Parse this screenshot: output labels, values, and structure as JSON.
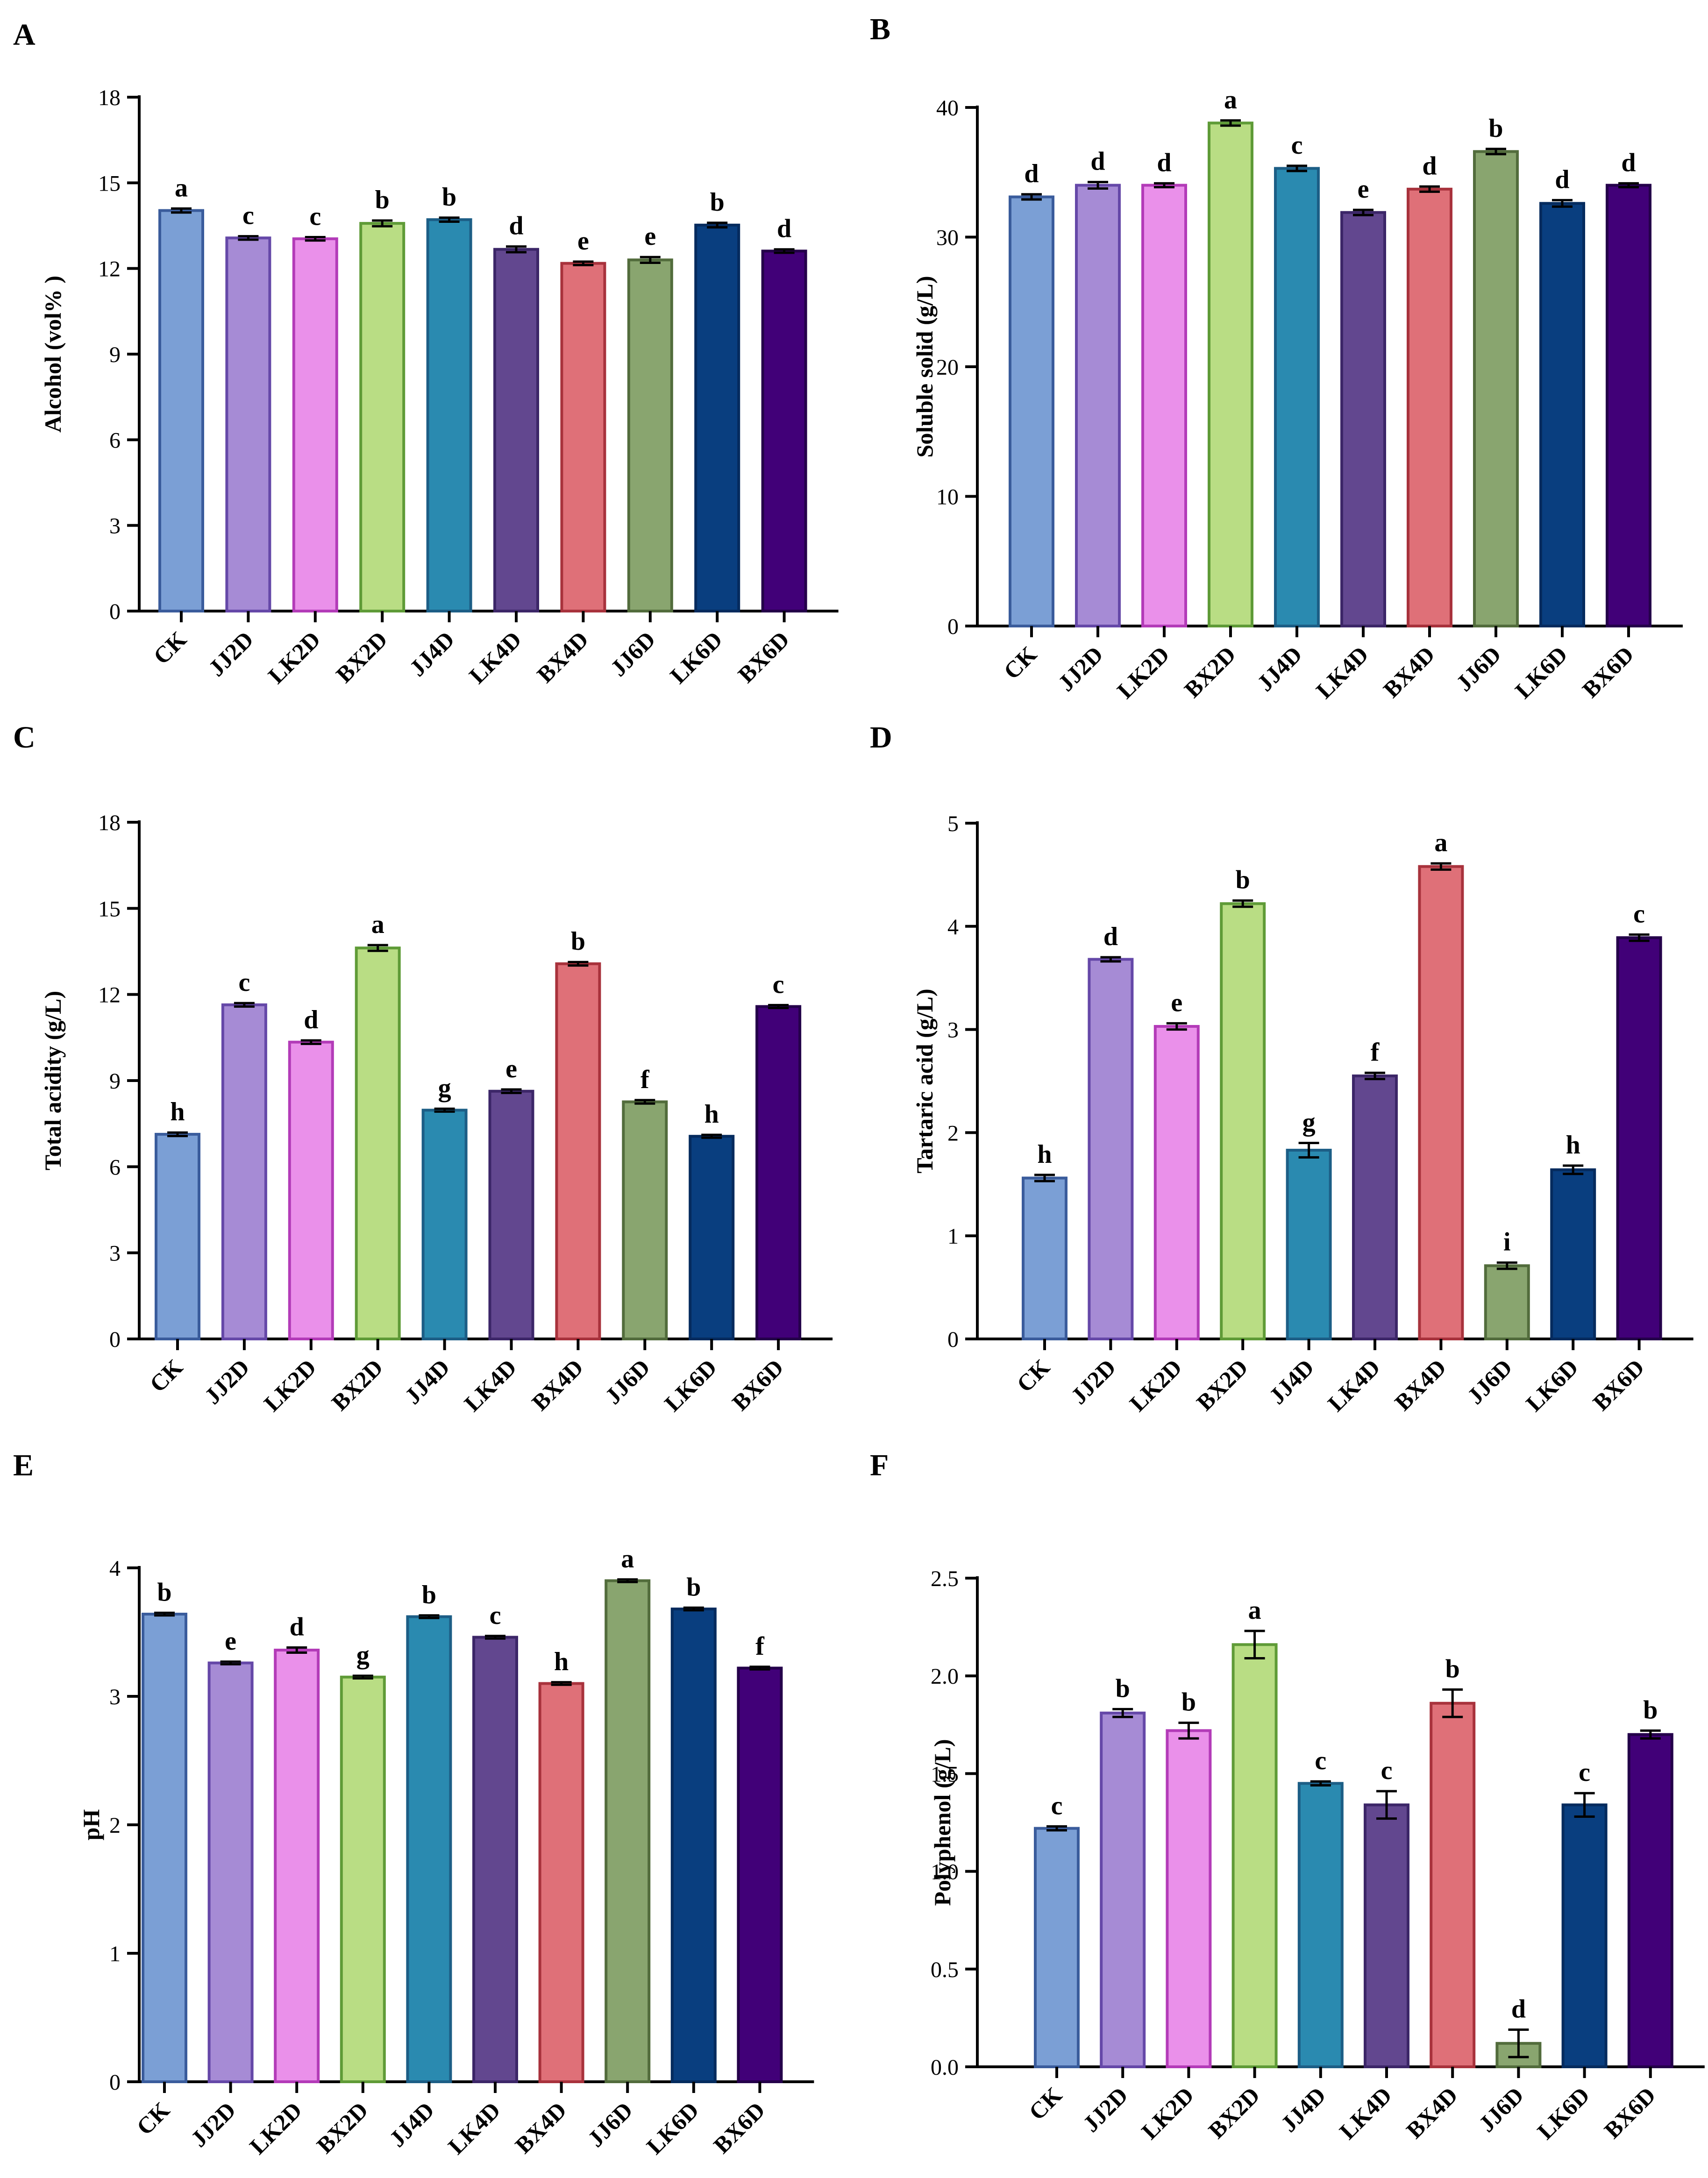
{
  "categories": [
    "CK",
    "JJ2D",
    "LK2D",
    "BX2D",
    "JJ4D",
    "LK4D",
    "BX4D",
    "JJ6D",
    "LK6D",
    "BX6D"
  ],
  "colors": {
    "fill": [
      "#7b9fd5",
      "#a68bd5",
      "#ea90ea",
      "#b9dd84",
      "#2a8ab0",
      "#62478f",
      "#df7078",
      "#89a56f",
      "#093e7f",
      "#410078"
    ],
    "stroke": [
      "#3a5c9c",
      "#6548a8",
      "#b33bb8",
      "#5f9b37",
      "#1c5e86",
      "#3c2668",
      "#a8323c",
      "#526c3c",
      "#052b5e",
      "#24004a"
    ]
  },
  "chart_data": [
    {
      "type": "bar",
      "panel": "A",
      "title": "",
      "xlabel": "",
      "ylabel": "Alcohol (vol% )",
      "ylim": [
        0,
        18
      ],
      "ticks": [
        0,
        3,
        6,
        9,
        12,
        15,
        18
      ],
      "tick_labels": [
        "0",
        "3",
        "6",
        "9",
        "12",
        "15",
        "18"
      ],
      "values": [
        14.03,
        13.07,
        13.04,
        13.58,
        13.71,
        12.67,
        12.18,
        12.3,
        13.52,
        12.61
      ],
      "errors": [
        0.07,
        0.06,
        0.06,
        0.1,
        0.07,
        0.1,
        0.06,
        0.1,
        0.08,
        0.06
      ],
      "letters": [
        "a",
        "c",
        "c",
        "b",
        "b",
        "d",
        "e",
        "e",
        "b",
        "d"
      ]
    },
    {
      "type": "bar",
      "panel": "B",
      "title": "",
      "xlabel": "",
      "ylabel": "Soluble solid (g/L)",
      "ylim": [
        0,
        40
      ],
      "ticks": [
        0,
        10,
        20,
        30,
        40
      ],
      "tick_labels": [
        "0",
        "10",
        "20",
        "30",
        "40"
      ],
      "values": [
        33.1,
        34.0,
        34.0,
        38.8,
        35.3,
        31.9,
        33.7,
        36.6,
        32.6,
        34.0
      ],
      "errors": [
        0.2,
        0.25,
        0.15,
        0.2,
        0.2,
        0.2,
        0.2,
        0.2,
        0.25,
        0.15
      ],
      "letters": [
        "d",
        "d",
        "d",
        "a",
        "c",
        "e",
        "d",
        "b",
        "d",
        "d"
      ]
    },
    {
      "type": "bar",
      "panel": "C",
      "title": "",
      "xlabel": "",
      "ylabel": "Total acidity (g/L)",
      "ylim": [
        0,
        18
      ],
      "ticks": [
        0,
        3,
        6,
        9,
        12,
        15,
        18
      ],
      "tick_labels": [
        "0",
        "3",
        "6",
        "9",
        "12",
        "15",
        "18"
      ],
      "values": [
        7.13,
        11.64,
        10.34,
        13.62,
        7.97,
        8.63,
        13.07,
        8.26,
        7.06,
        11.58
      ],
      "errors": [
        0.06,
        0.06,
        0.06,
        0.1,
        0.05,
        0.06,
        0.06,
        0.06,
        0.05,
        0.05
      ],
      "letters": [
        "h",
        "c",
        "d",
        "a",
        "g",
        "e",
        "b",
        "f",
        "h",
        "c"
      ]
    },
    {
      "type": "bar",
      "panel": "D",
      "title": "",
      "xlabel": "",
      "ylabel": "Tartaric acid (g/L)",
      "ylim": [
        0,
        5
      ],
      "ticks": [
        0,
        1,
        2,
        3,
        4,
        5
      ],
      "tick_labels": [
        "0",
        "1",
        "2",
        "3",
        "4",
        "5"
      ],
      "values": [
        1.56,
        3.68,
        3.03,
        4.22,
        1.83,
        2.55,
        4.58,
        0.71,
        1.64,
        3.89
      ],
      "errors": [
        0.03,
        0.02,
        0.03,
        0.03,
        0.07,
        0.03,
        0.03,
        0.03,
        0.04,
        0.03
      ],
      "letters": [
        "h",
        "d",
        "e",
        "b",
        "g",
        "f",
        "a",
        "i",
        "h",
        "c"
      ]
    },
    {
      "type": "bar",
      "panel": "E",
      "title": "",
      "xlabel": "",
      "ylabel": "pH",
      "ylim": [
        0,
        4
      ],
      "ticks": [
        0,
        1,
        2,
        3,
        4
      ],
      "tick_labels": [
        "0",
        "1",
        "2",
        "3",
        "4"
      ],
      "values": [
        3.64,
        3.26,
        3.36,
        3.15,
        3.62,
        3.46,
        3.1,
        3.9,
        3.68,
        3.22
      ],
      "errors": [
        0.01,
        0.01,
        0.02,
        0.01,
        0.01,
        0.01,
        0.01,
        0.01,
        0.01,
        0.01
      ],
      "letters": [
        "b",
        "e",
        "d",
        "g",
        "b",
        "c",
        "h",
        "a",
        "b",
        "f"
      ]
    },
    {
      "type": "bar",
      "panel": "F",
      "title": "",
      "xlabel": "",
      "ylabel": "Polyphenol (g/L)",
      "ylim": [
        0,
        2.5
      ],
      "ticks": [
        0,
        0.5,
        1.0,
        1.5,
        2.0,
        2.5
      ],
      "tick_labels": [
        "0.0",
        "0.5",
        "1.0",
        "1.5",
        "2.0",
        "2.5"
      ],
      "values": [
        1.22,
        1.81,
        1.72,
        2.16,
        1.45,
        1.34,
        1.86,
        0.12,
        1.34,
        1.7
      ],
      "errors": [
        0.01,
        0.02,
        0.04,
        0.07,
        0.01,
        0.07,
        0.07,
        0.07,
        0.06,
        0.02
      ],
      "letters": [
        "c",
        "b",
        "b",
        "a",
        "c",
        "c",
        "b",
        "d",
        "c",
        "b"
      ]
    }
  ]
}
